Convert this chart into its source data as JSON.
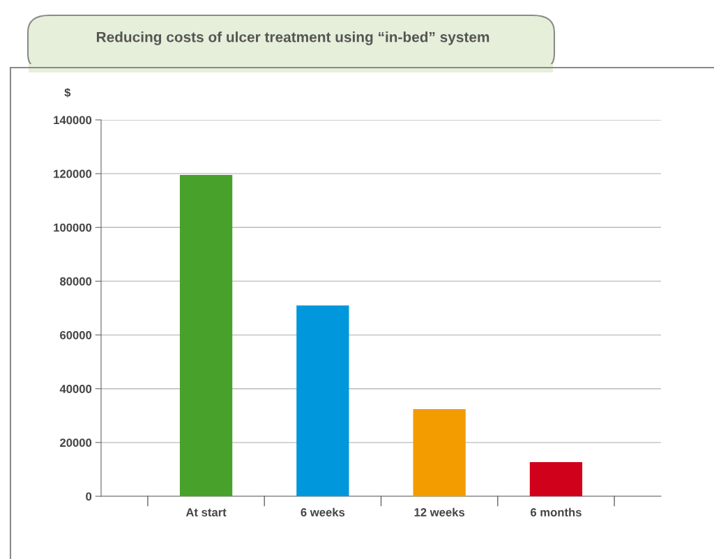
{
  "chart_data": {
    "type": "bar",
    "title": "Reducing costs of ulcer treatment using “in-bed” system",
    "ylabel": "$",
    "categories": [
      "At start",
      "6 weeks",
      "12 weeks",
      "6 months"
    ],
    "values": [
      119500,
      71000,
      32400,
      12700
    ],
    "colors": [
      "#48a12a",
      "#0097dc",
      "#f29c00",
      "#d0021b"
    ],
    "ylim": [
      0,
      140000
    ],
    "yticks": [
      0,
      20000,
      40000,
      60000,
      80000,
      100000,
      120000,
      140000
    ],
    "grid": "y",
    "legend": false
  }
}
